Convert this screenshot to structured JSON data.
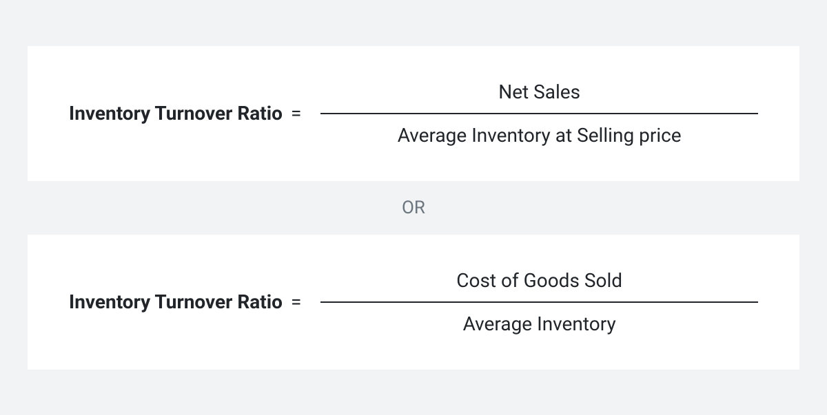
{
  "formulas": [
    {
      "label": "Inventory Turnover Ratio",
      "equals_symbol": "=",
      "numerator": "Net Sales",
      "denominator": "Average Inventory at Selling price"
    },
    {
      "label": "Inventory Turnover Ratio",
      "equals_symbol": "=",
      "numerator": "Cost of Goods Sold",
      "denominator": "Average Inventory"
    }
  ],
  "separator_label": "OR",
  "styling": {
    "page_background": "#f1f3f5",
    "card_background": "#ffffff",
    "text_color": "#212529",
    "separator_color": "#6c757d",
    "fraction_line_color": "#212529",
    "label_fontsize": 28,
    "label_fontweight": 700,
    "value_fontsize": 28,
    "value_fontweight": 400,
    "separator_fontsize": 26
  }
}
